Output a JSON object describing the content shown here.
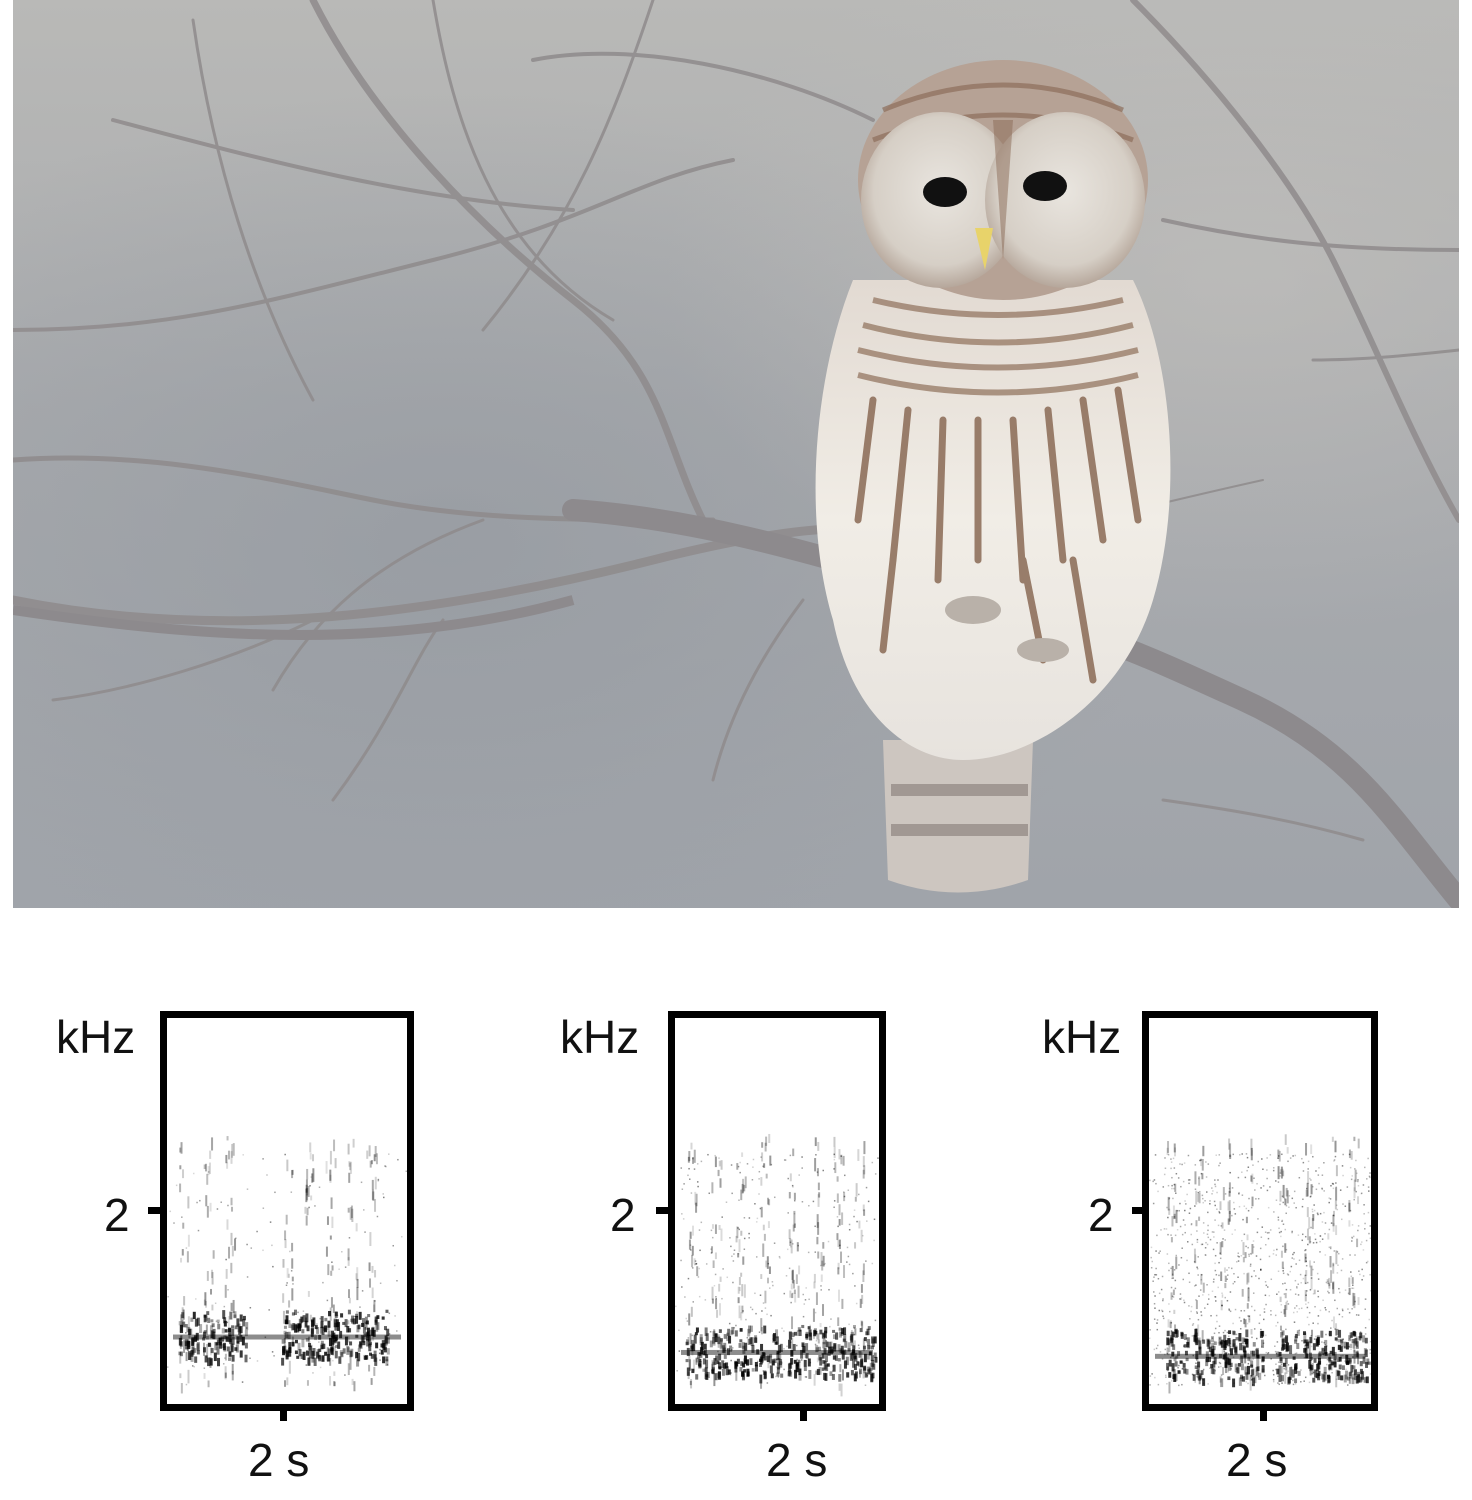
{
  "figure": {
    "photo": {
      "subject": "barred owl perched on bare branch"
    },
    "spectrograms": [
      {
        "y_unit": "kHz",
        "y_tick": "2",
        "x_tick": "2 s"
      },
      {
        "y_unit": "kHz",
        "y_tick": "2",
        "x_tick": "2 s"
      },
      {
        "y_unit": "kHz",
        "y_tick": "2",
        "x_tick": "2 s"
      }
    ]
  }
}
